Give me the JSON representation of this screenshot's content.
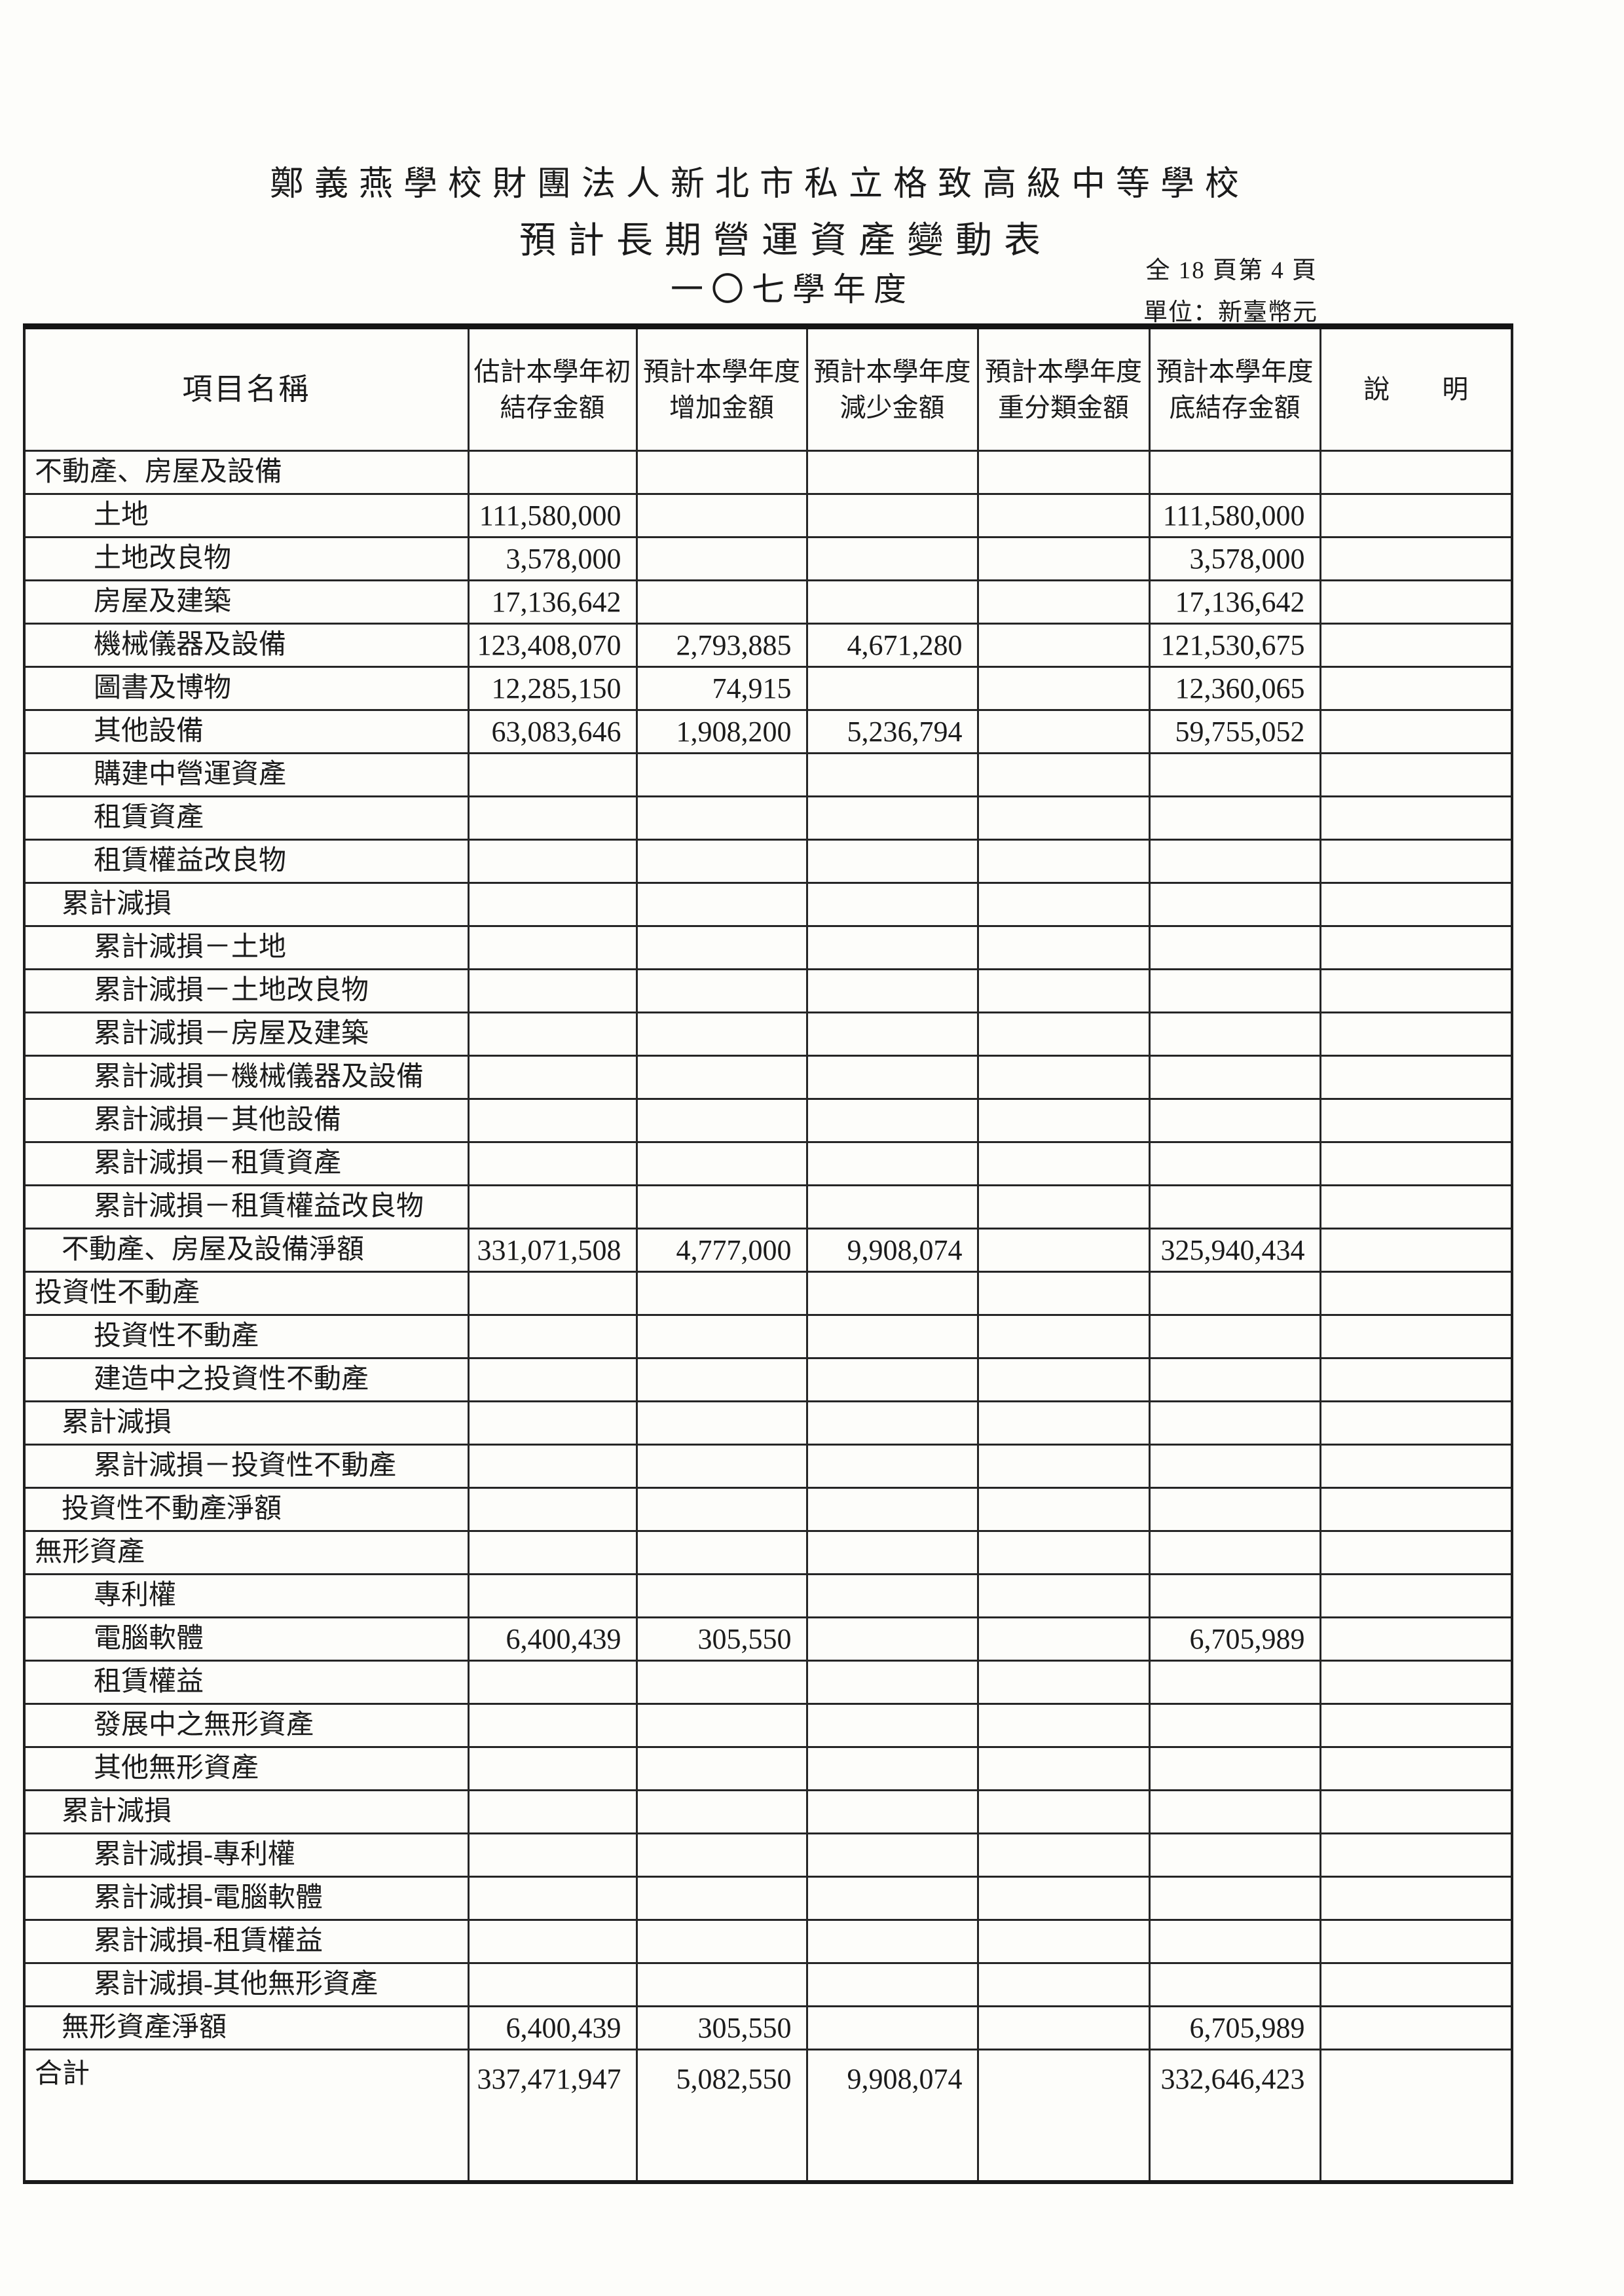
{
  "header": {
    "school": "鄭義燕學校財團法人新北市私立格致高級中等學校",
    "title": "預計長期營運資產變動表",
    "year": "一〇七學年度",
    "page_info": "全 18 頁第 4 頁",
    "unit": "單位：新臺幣元"
  },
  "table": {
    "columns": [
      {
        "key": "name",
        "lines": [
          "項目名稱"
        ]
      },
      {
        "key": "beginning_balance",
        "lines": [
          "估計本學年初",
          "結存金額"
        ]
      },
      {
        "key": "increase",
        "lines": [
          "預計本學年度",
          "增加金額"
        ]
      },
      {
        "key": "decrease",
        "lines": [
          "預計本學年度",
          "減少金額"
        ]
      },
      {
        "key": "reclassification",
        "lines": [
          "預計本學年度",
          "重分類金額"
        ]
      },
      {
        "key": "ending_balance",
        "lines": [
          "預計本學年度",
          "底結存金額"
        ]
      },
      {
        "key": "note",
        "lines": [
          "說　　明"
        ]
      }
    ],
    "rows": [
      {
        "label": "不動產、房屋及設備",
        "indent": 0,
        "values": [
          "",
          "",
          "",
          "",
          ""
        ]
      },
      {
        "label": "土地",
        "indent": 2,
        "values": [
          "111,580,000",
          "",
          "",
          "",
          "111,580,000"
        ]
      },
      {
        "label": "土地改良物",
        "indent": 2,
        "values": [
          "3,578,000",
          "",
          "",
          "",
          "3,578,000"
        ]
      },
      {
        "label": "房屋及建築",
        "indent": 2,
        "values": [
          "17,136,642",
          "",
          "",
          "",
          "17,136,642"
        ]
      },
      {
        "label": "機械儀器及設備",
        "indent": 2,
        "values": [
          "123,408,070",
          "2,793,885",
          "4,671,280",
          "",
          "121,530,675"
        ]
      },
      {
        "label": "圖書及博物",
        "indent": 2,
        "values": [
          "12,285,150",
          "74,915",
          "",
          "",
          "12,360,065"
        ]
      },
      {
        "label": "其他設備",
        "indent": 2,
        "values": [
          "63,083,646",
          "1,908,200",
          "5,236,794",
          "",
          "59,755,052"
        ]
      },
      {
        "label": "購建中營運資產",
        "indent": 2,
        "values": [
          "",
          "",
          "",
          "",
          ""
        ]
      },
      {
        "label": "租賃資產",
        "indent": 2,
        "values": [
          "",
          "",
          "",
          "",
          ""
        ]
      },
      {
        "label": "租賃權益改良物",
        "indent": 2,
        "values": [
          "",
          "",
          "",
          "",
          ""
        ]
      },
      {
        "label": "累計減損",
        "indent": 1,
        "values": [
          "",
          "",
          "",
          "",
          ""
        ]
      },
      {
        "label": "累計減損－土地",
        "indent": 2,
        "values": [
          "",
          "",
          "",
          "",
          ""
        ]
      },
      {
        "label": "累計減損－土地改良物",
        "indent": 2,
        "values": [
          "",
          "",
          "",
          "",
          ""
        ]
      },
      {
        "label": "累計減損－房屋及建築",
        "indent": 2,
        "values": [
          "",
          "",
          "",
          "",
          ""
        ]
      },
      {
        "label": "累計減損－機械儀器及設備",
        "indent": 2,
        "values": [
          "",
          "",
          "",
          "",
          ""
        ]
      },
      {
        "label": "累計減損－其他設備",
        "indent": 2,
        "values": [
          "",
          "",
          "",
          "",
          ""
        ]
      },
      {
        "label": "累計減損－租賃資產",
        "indent": 2,
        "values": [
          "",
          "",
          "",
          "",
          ""
        ]
      },
      {
        "label": "累計減損－租賃權益改良物",
        "indent": 2,
        "values": [
          "",
          "",
          "",
          "",
          ""
        ]
      },
      {
        "label": "不動產、房屋及設備淨額",
        "indent": 1,
        "values": [
          "331,071,508",
          "4,777,000",
          "9,908,074",
          "",
          "325,940,434"
        ]
      },
      {
        "label": "投資性不動產",
        "indent": 0,
        "values": [
          "",
          "",
          "",
          "",
          ""
        ]
      },
      {
        "label": "投資性不動產",
        "indent": 2,
        "values": [
          "",
          "",
          "",
          "",
          ""
        ]
      },
      {
        "label": "建造中之投資性不動產",
        "indent": 2,
        "values": [
          "",
          "",
          "",
          "",
          ""
        ]
      },
      {
        "label": "累計減損",
        "indent": 1,
        "values": [
          "",
          "",
          "",
          "",
          ""
        ]
      },
      {
        "label": "累計減損－投資性不動產",
        "indent": 2,
        "values": [
          "",
          "",
          "",
          "",
          ""
        ]
      },
      {
        "label": "投資性不動產淨額",
        "indent": 1,
        "values": [
          "",
          "",
          "",
          "",
          ""
        ]
      },
      {
        "label": "無形資產",
        "indent": 0,
        "values": [
          "",
          "",
          "",
          "",
          ""
        ]
      },
      {
        "label": "專利權",
        "indent": 2,
        "values": [
          "",
          "",
          "",
          "",
          ""
        ]
      },
      {
        "label": "電腦軟體",
        "indent": 2,
        "values": [
          "6,400,439",
          "305,550",
          "",
          "",
          "6,705,989"
        ]
      },
      {
        "label": "租賃權益",
        "indent": 2,
        "values": [
          "",
          "",
          "",
          "",
          ""
        ]
      },
      {
        "label": "發展中之無形資產",
        "indent": 2,
        "values": [
          "",
          "",
          "",
          "",
          ""
        ]
      },
      {
        "label": "其他無形資產",
        "indent": 2,
        "values": [
          "",
          "",
          "",
          "",
          ""
        ]
      },
      {
        "label": "累計減損",
        "indent": 1,
        "values": [
          "",
          "",
          "",
          "",
          ""
        ]
      },
      {
        "label": "累計減損-專利權",
        "indent": 2,
        "values": [
          "",
          "",
          "",
          "",
          ""
        ]
      },
      {
        "label": "累計減損-電腦軟體",
        "indent": 2,
        "values": [
          "",
          "",
          "",
          "",
          ""
        ]
      },
      {
        "label": "累計減損-租賃權益",
        "indent": 2,
        "values": [
          "",
          "",
          "",
          "",
          ""
        ]
      },
      {
        "label": "累計減損-其他無形資產",
        "indent": 2,
        "values": [
          "",
          "",
          "",
          "",
          ""
        ]
      },
      {
        "label": "無形資產淨額",
        "indent": 1,
        "values": [
          "6,400,439",
          "305,550",
          "",
          "",
          "6,705,989"
        ]
      },
      {
        "label": "合計",
        "indent": 0,
        "values": [
          "337,471,947",
          "5,082,550",
          "9,908,074",
          "",
          "332,646,423"
        ],
        "tall": true
      }
    ]
  }
}
